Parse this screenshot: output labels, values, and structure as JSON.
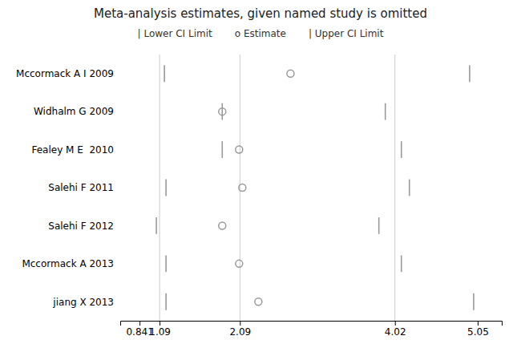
{
  "chart_data": {
    "type": "forest",
    "title": "Meta-analysis estimates, given named study is omitted",
    "orientation": "horizontal",
    "legend": "top",
    "color": "#999999",
    "categories": [
      "Mccormack A I 2009",
      "Widhalm G 2009",
      "Fealey M E  2010",
      "Salehi F 2011",
      "Salehi F 2012",
      "Mccormack A 2013",
      "jiang X 2013"
    ],
    "series": [
      {
        "name": "| Lower CI Limit",
        "marker": "tick",
        "values": [
          1.15,
          1.87,
          1.87,
          1.17,
          1.05,
          1.17,
          1.17
        ]
      },
      {
        "name": "o Estimate",
        "marker": "circle",
        "values": [
          2.72,
          1.87,
          2.08,
          2.12,
          1.87,
          2.08,
          2.32
        ]
      },
      {
        "name": "| Upper CI Limit",
        "marker": "tick",
        "values": [
          4.95,
          3.9,
          4.1,
          4.2,
          3.82,
          4.1,
          5.0
        ]
      }
    ],
    "xlim": [
      0.6,
      5.35
    ],
    "xticks": [
      0.841,
      1.09,
      2.09,
      4.02,
      5.05
    ],
    "reference_lines": [
      1.09,
      2.09,
      4.02
    ]
  }
}
